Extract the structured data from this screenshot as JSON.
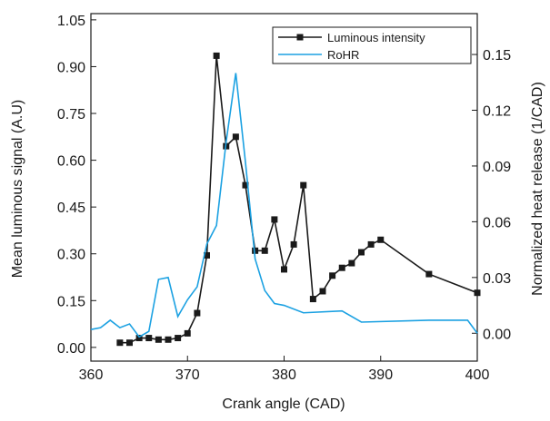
{
  "chart_data": {
    "type": "line",
    "xlabel": "Crank angle (CAD)",
    "ylabel": "Mean luminous signal (A.U)",
    "y2label": "Normalized heat release (1/CAD)",
    "xlim": [
      360,
      400
    ],
    "xticks": [
      360,
      370,
      380,
      390,
      400
    ],
    "ylim": [
      -0.044,
      1.07
    ],
    "yticks": [
      {
        "value": 0,
        "label": "0.00"
      },
      {
        "value": 0.15,
        "label": "0.15"
      },
      {
        "value": 0.3,
        "label": "0.30"
      },
      {
        "value": 0.45,
        "label": "0.45"
      },
      {
        "value": 0.6,
        "label": "0.60"
      },
      {
        "value": 0.75,
        "label": "0.75"
      },
      {
        "value": 0.9,
        "label": "0.90"
      },
      {
        "value": 1.05,
        "label": "1.05"
      }
    ],
    "y2lim": [
      -0.015,
      0.172
    ],
    "y2ticks": [
      {
        "value": 0,
        "label": "0.00"
      },
      {
        "value": 0.03,
        "label": "0.03"
      },
      {
        "value": 0.06,
        "label": "0.06"
      },
      {
        "value": 0.09,
        "label": "0.09"
      },
      {
        "value": 0.12,
        "label": "0.12"
      },
      {
        "value": 0.15,
        "label": "0.15"
      }
    ],
    "legend": "upper right",
    "series": [
      {
        "name": "Luminous intensity",
        "color": "#1a1a1a",
        "marker": "square",
        "x": [
          363,
          364,
          365,
          366,
          367,
          368,
          369,
          370,
          371,
          372,
          373,
          374,
          375,
          376,
          377,
          378,
          379,
          380,
          381,
          382,
          383,
          384,
          385,
          386,
          387,
          388,
          389,
          390,
          395,
          400
        ],
        "values": [
          0.015,
          0.015,
          0.03,
          0.03,
          0.025,
          0.025,
          0.03,
          0.045,
          0.11,
          0.295,
          0.935,
          0.645,
          0.675,
          0.52,
          0.31,
          0.31,
          0.41,
          0.25,
          0.33,
          0.52,
          0.155,
          0.18,
          0.23,
          0.255,
          0.27,
          0.305,
          0.33,
          0.345,
          0.235,
          0.175
        ]
      },
      {
        "name": "RoHR",
        "color": "#1ba1e2",
        "axis": "y2",
        "x": [
          360,
          361,
          362,
          363,
          364,
          365,
          366,
          367,
          368,
          369,
          370,
          371,
          372,
          373,
          374,
          375,
          376,
          377,
          378,
          379,
          380,
          382,
          386,
          388,
          395,
          399,
          400
        ],
        "values": [
          0.002,
          0.003,
          0.007,
          0.003,
          0.005,
          -0.002,
          0.001,
          0.029,
          0.03,
          0.009,
          0.018,
          0.025,
          0.048,
          0.058,
          0.103,
          0.14,
          0.092,
          0.04,
          0.023,
          0.016,
          0.015,
          0.011,
          0.012,
          0.006,
          0.007,
          0.007,
          0.0
        ]
      }
    ]
  }
}
